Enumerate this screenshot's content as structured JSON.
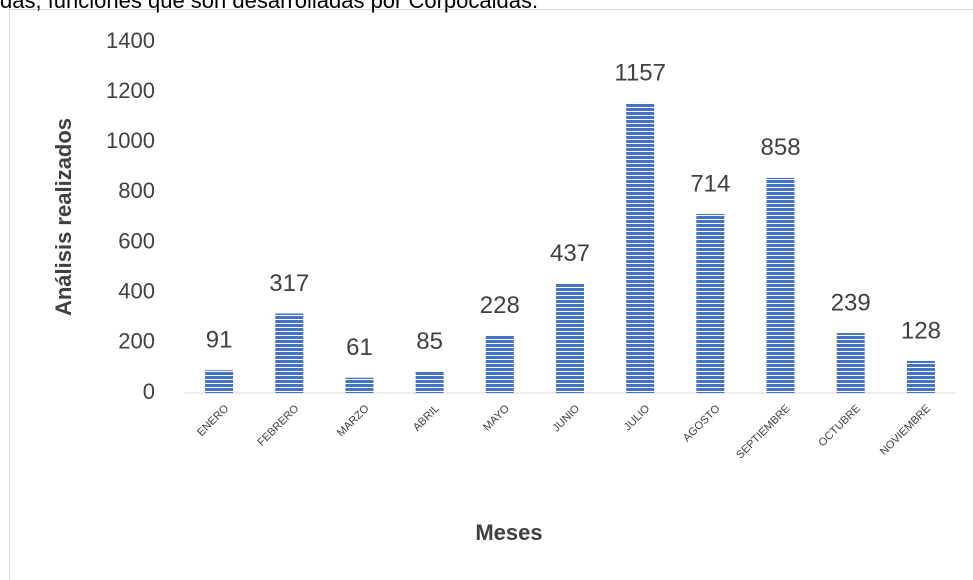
{
  "chart_data": {
    "type": "bar",
    "caption": "das, funciones que son desarrolladas por Corpocaldas.",
    "categories": [
      "ENERO",
      "FEBRERO",
      "MARZO",
      "ABRIL",
      "MAYO",
      "JUNIO",
      "JULIO",
      "AGOSTO",
      "SEPTIEMBRE",
      "OCTUBRE",
      "NOVIEMBRE"
    ],
    "values": [
      91,
      317,
      61,
      85,
      228,
      437,
      1157,
      714,
      858,
      239,
      128
    ],
    "color": "#4472c4",
    "xlabel": "Meses",
    "ylabel": "Análisis realizados",
    "ylim": [
      0,
      1400
    ],
    "yticks": [
      0,
      200,
      400,
      600,
      800,
      1000,
      1200,
      1400
    ],
    "grid": false
  }
}
